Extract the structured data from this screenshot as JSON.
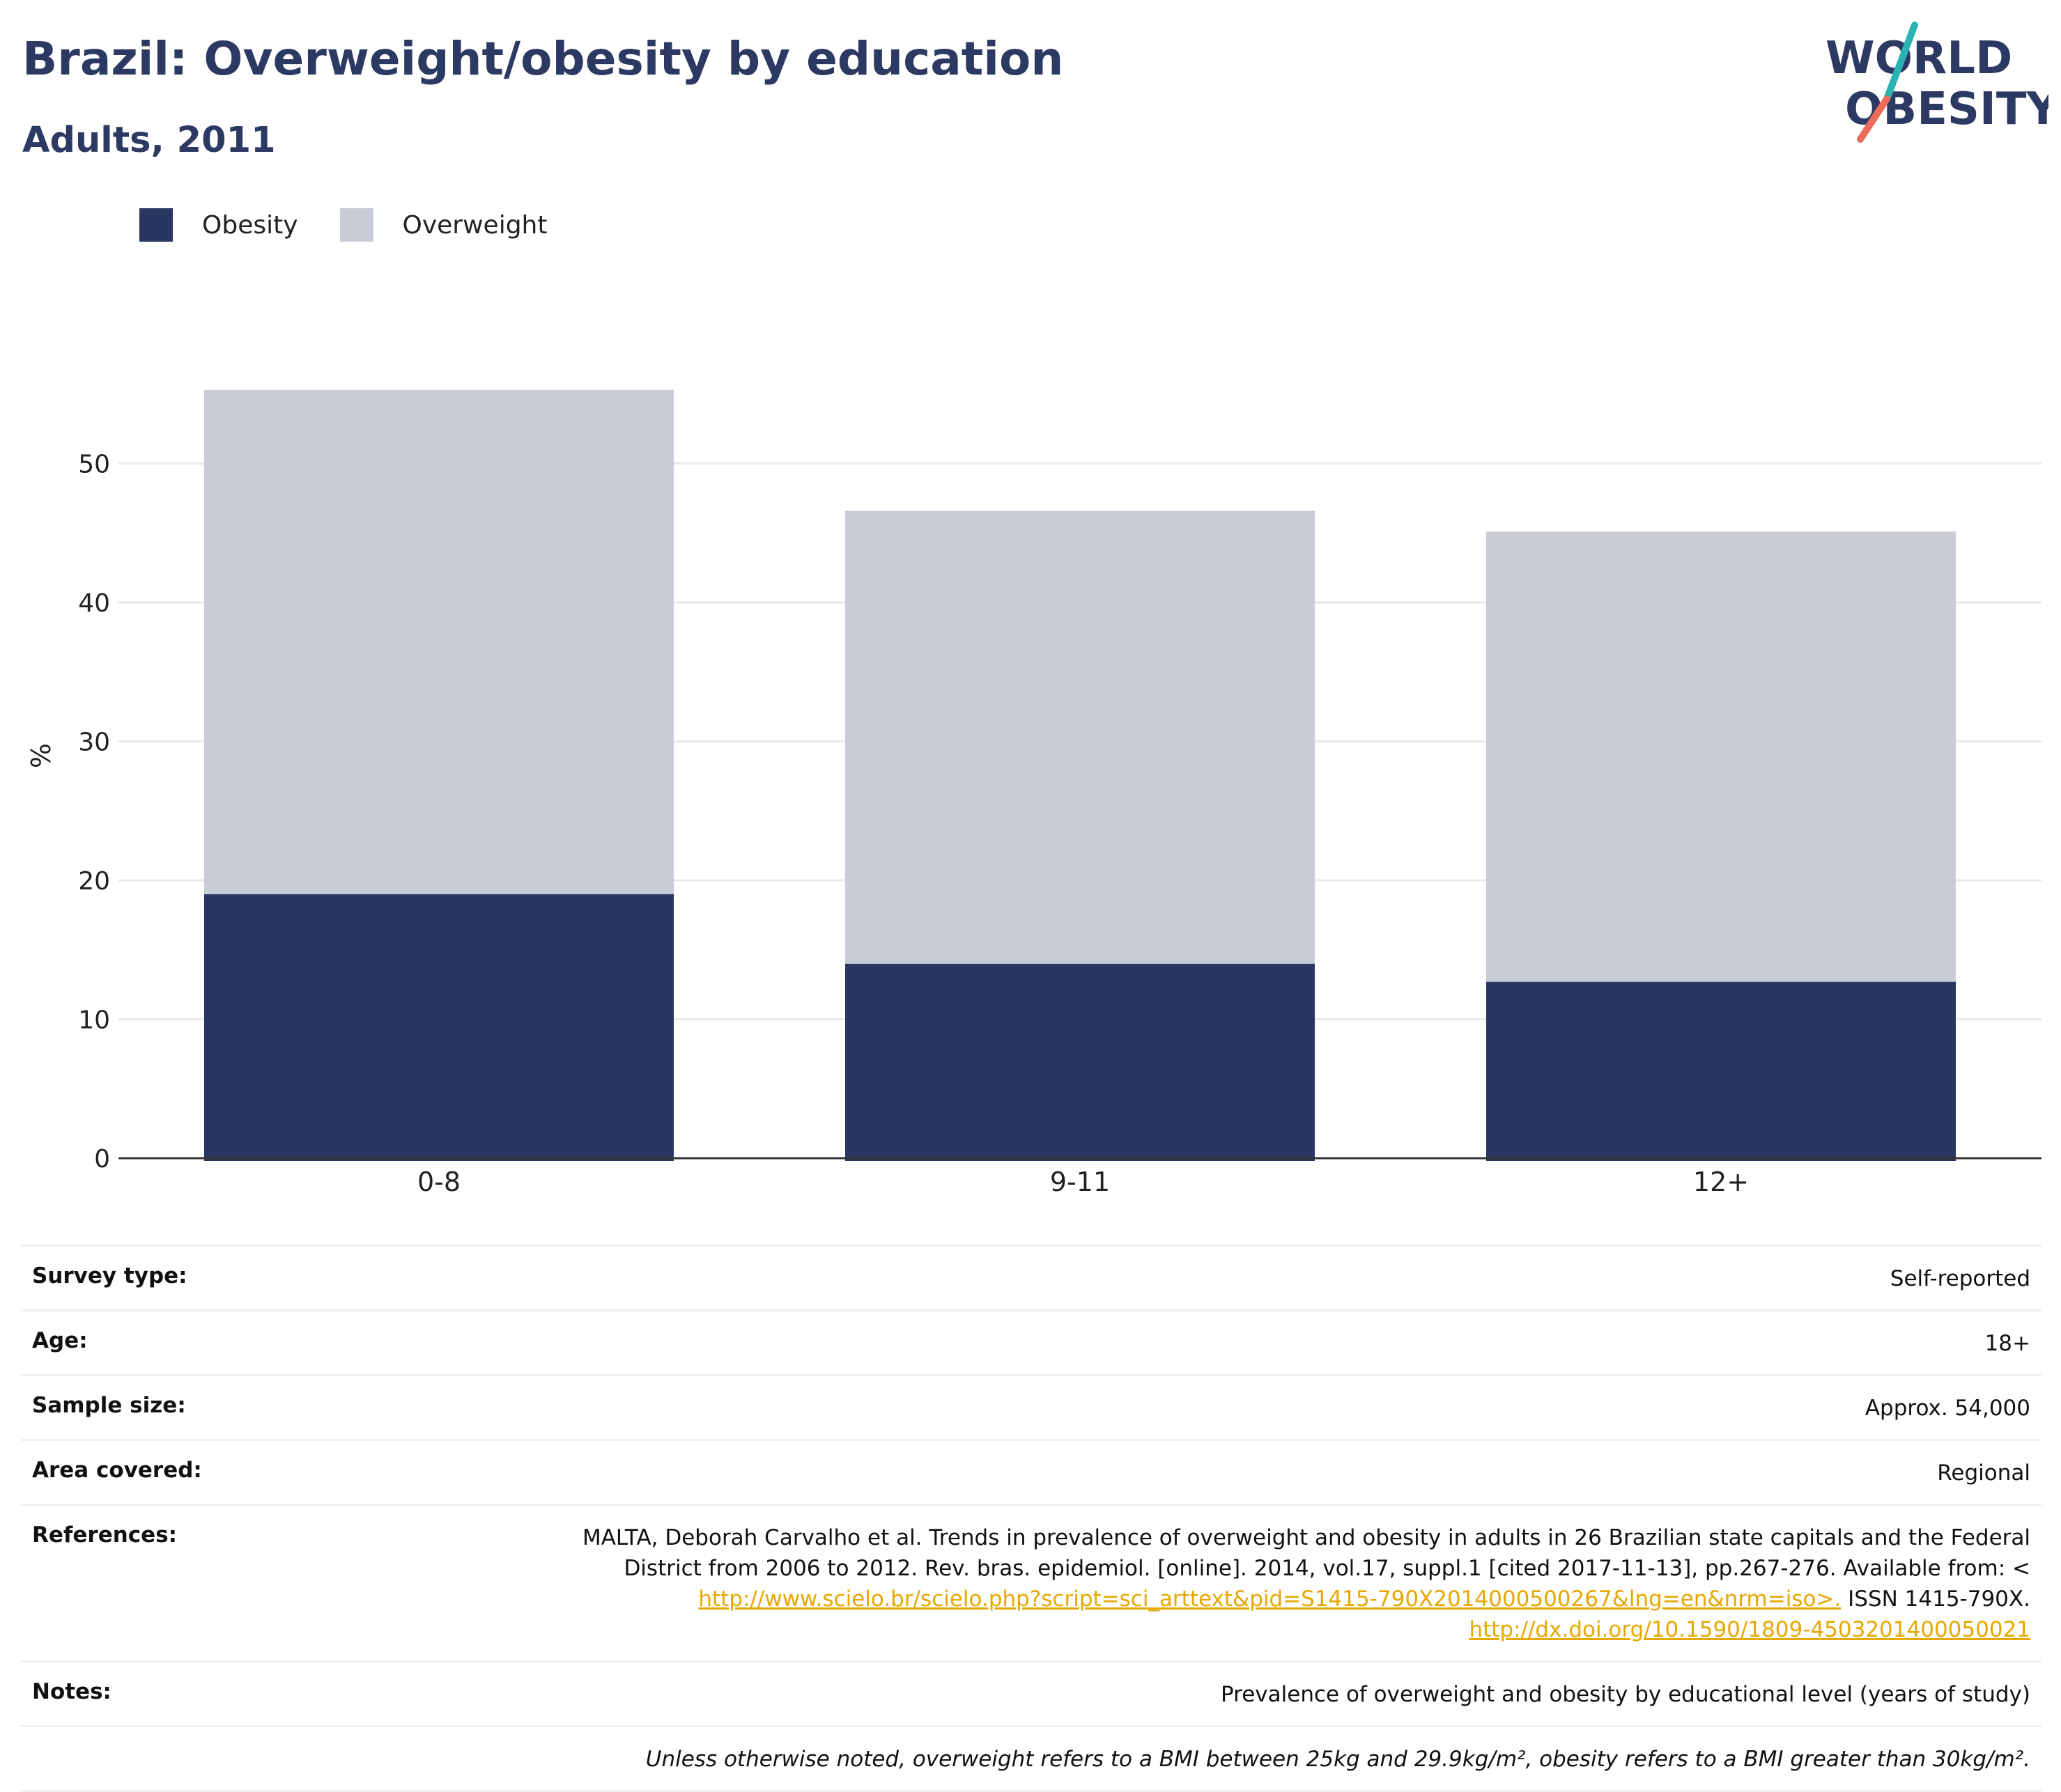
{
  "header": {
    "title": "Brazil: Overweight/obesity by education",
    "subtitle": "Adults, 2011"
  },
  "logo": {
    "line1": "WORLD",
    "line2": "OBESITY",
    "colors": {
      "text": "#2c3a63",
      "slash_top": "#2bb3b1",
      "slash_bottom": "#ec6b5a"
    }
  },
  "legend": [
    {
      "label": "Obesity",
      "color": "#2a3662"
    },
    {
      "label": "Overweight",
      "color": "#c9ccd7"
    }
  ],
  "chart_data": {
    "type": "bar",
    "stacked": true,
    "categories": [
      "0-8",
      "9-11",
      "12+"
    ],
    "series": [
      {
        "name": "Obesity",
        "values": [
          19.0,
          14.0,
          12.7
        ],
        "color": "#2a3662"
      },
      {
        "name": "Overweight",
        "values": [
          36.3,
          32.6,
          32.4
        ],
        "color": "#c9ccd7"
      }
    ],
    "ylabel": "%",
    "xlabel": "",
    "ylim": [
      0,
      60
    ],
    "yticks": [
      0,
      10,
      20,
      30,
      40,
      50
    ],
    "grid": true,
    "legend_position": "top-left"
  },
  "info": {
    "survey_type_label": "Survey type:",
    "survey_type": "Self-reported",
    "age_label": "Age:",
    "age": "18+",
    "sample_size_label": "Sample size:",
    "sample_size": "Approx. 54,000",
    "area_label": "Area covered:",
    "area": "Regional",
    "references_label": "References:",
    "references_text_1": "MALTA, Deborah Carvalho et al. Trends in prevalence of overweight and obesity in adults in 26 Brazilian state capitals and the Federal",
    "references_text_2": "District from 2006 to 2012. Rev. bras. epidemiol. [online]. 2014, vol.17, suppl.1 [cited 2017-11-13], pp.267-276. Available from: <",
    "references_link_1": "http://www.scielo.br/scielo.php?script=sci_arttext&pid=S1415-790X2014000500267&lng=en&nrm=iso>.",
    "references_issn": " ISSN 1415-790X.",
    "references_link_2": "http://dx.doi.org/10.1590/1809-4503201400050021",
    "notes_label": "Notes:",
    "notes": "Prevalence of overweight and obesity by educational level (years of study)",
    "footnote": "Unless otherwise noted, overweight refers to a BMI between 25kg and 29.9kg/m², obesity refers to a BMI greater than 30kg/m²."
  }
}
